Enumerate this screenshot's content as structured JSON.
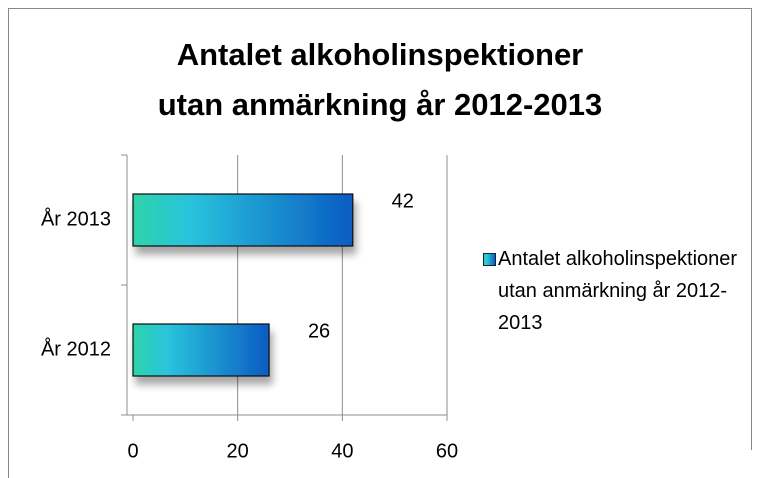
{
  "chart_data": {
    "type": "bar",
    "orientation": "horizontal",
    "title": "Antalet alkoholinspektioner\nutan anmärkning år 2012-2013",
    "categories": [
      "År 2012",
      "År 2013"
    ],
    "series": [
      {
        "name": "Antalet alkoholinspektioner utan anmärkning år 2012-2013",
        "color": "#0a5cc2",
        "values": [
          26,
          42
        ]
      }
    ],
    "xlim": [
      0,
      60
    ],
    "xticks": [
      0,
      20,
      40,
      60
    ],
    "grid": true,
    "legend": "right"
  }
}
